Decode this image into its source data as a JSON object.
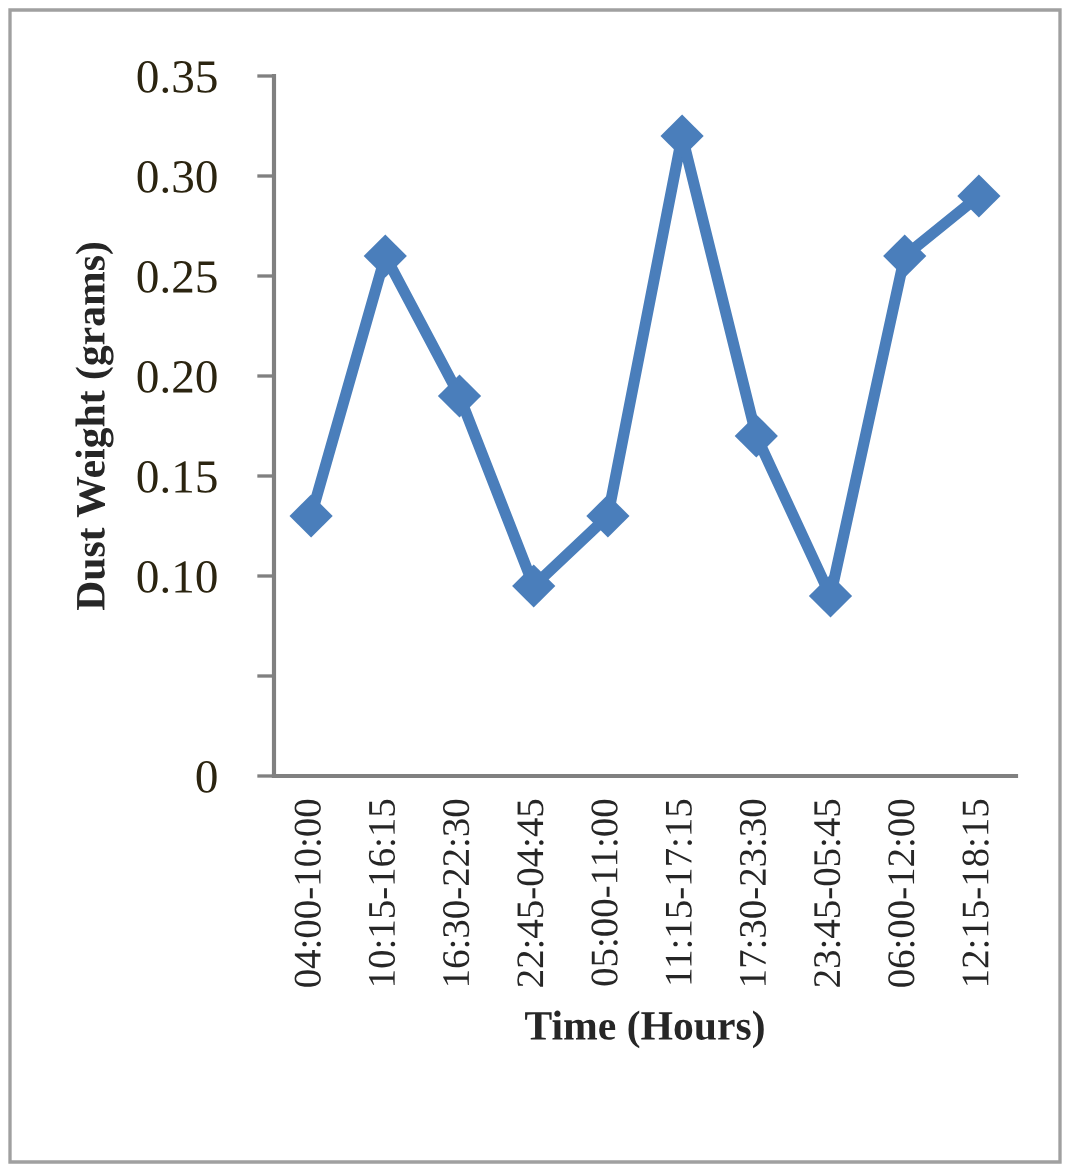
{
  "chart_data": {
    "type": "line",
    "xlabel": "Time (Hours)",
    "ylabel": "Dust Weight (grams)",
    "categories": [
      "04:00-10:00",
      "10:15-16:15",
      "16:30-22:30",
      "22:45-04:45",
      "05:00-11:00",
      "11:15-17:15",
      "17:30-23:30",
      "23:45-05:45",
      "06:00-12:00",
      "12:15-18:15"
    ],
    "series": [
      {
        "color": "#4a7ebb",
        "values": [
          0.13,
          0.26,
          0.19,
          0.095,
          0.13,
          0.32,
          0.17,
          0.09,
          0.26,
          0.29
        ]
      }
    ],
    "ylim": [
      0,
      0.35
    ],
    "yticks": [
      {
        "value": 0,
        "label": "0"
      },
      {
        "value": 0.05,
        "label": null
      },
      {
        "value": 0.1,
        "label": "0.10"
      },
      {
        "value": 0.15,
        "label": "0.15"
      },
      {
        "value": 0.2,
        "label": "0.20"
      },
      {
        "value": 0.25,
        "label": "0.25"
      },
      {
        "value": 0.3,
        "label": "0.30"
      },
      {
        "value": 0.35,
        "label": "0.35"
      }
    ],
    "marker": "diamond",
    "line_style": "solid",
    "grid": false,
    "legend": false
  }
}
